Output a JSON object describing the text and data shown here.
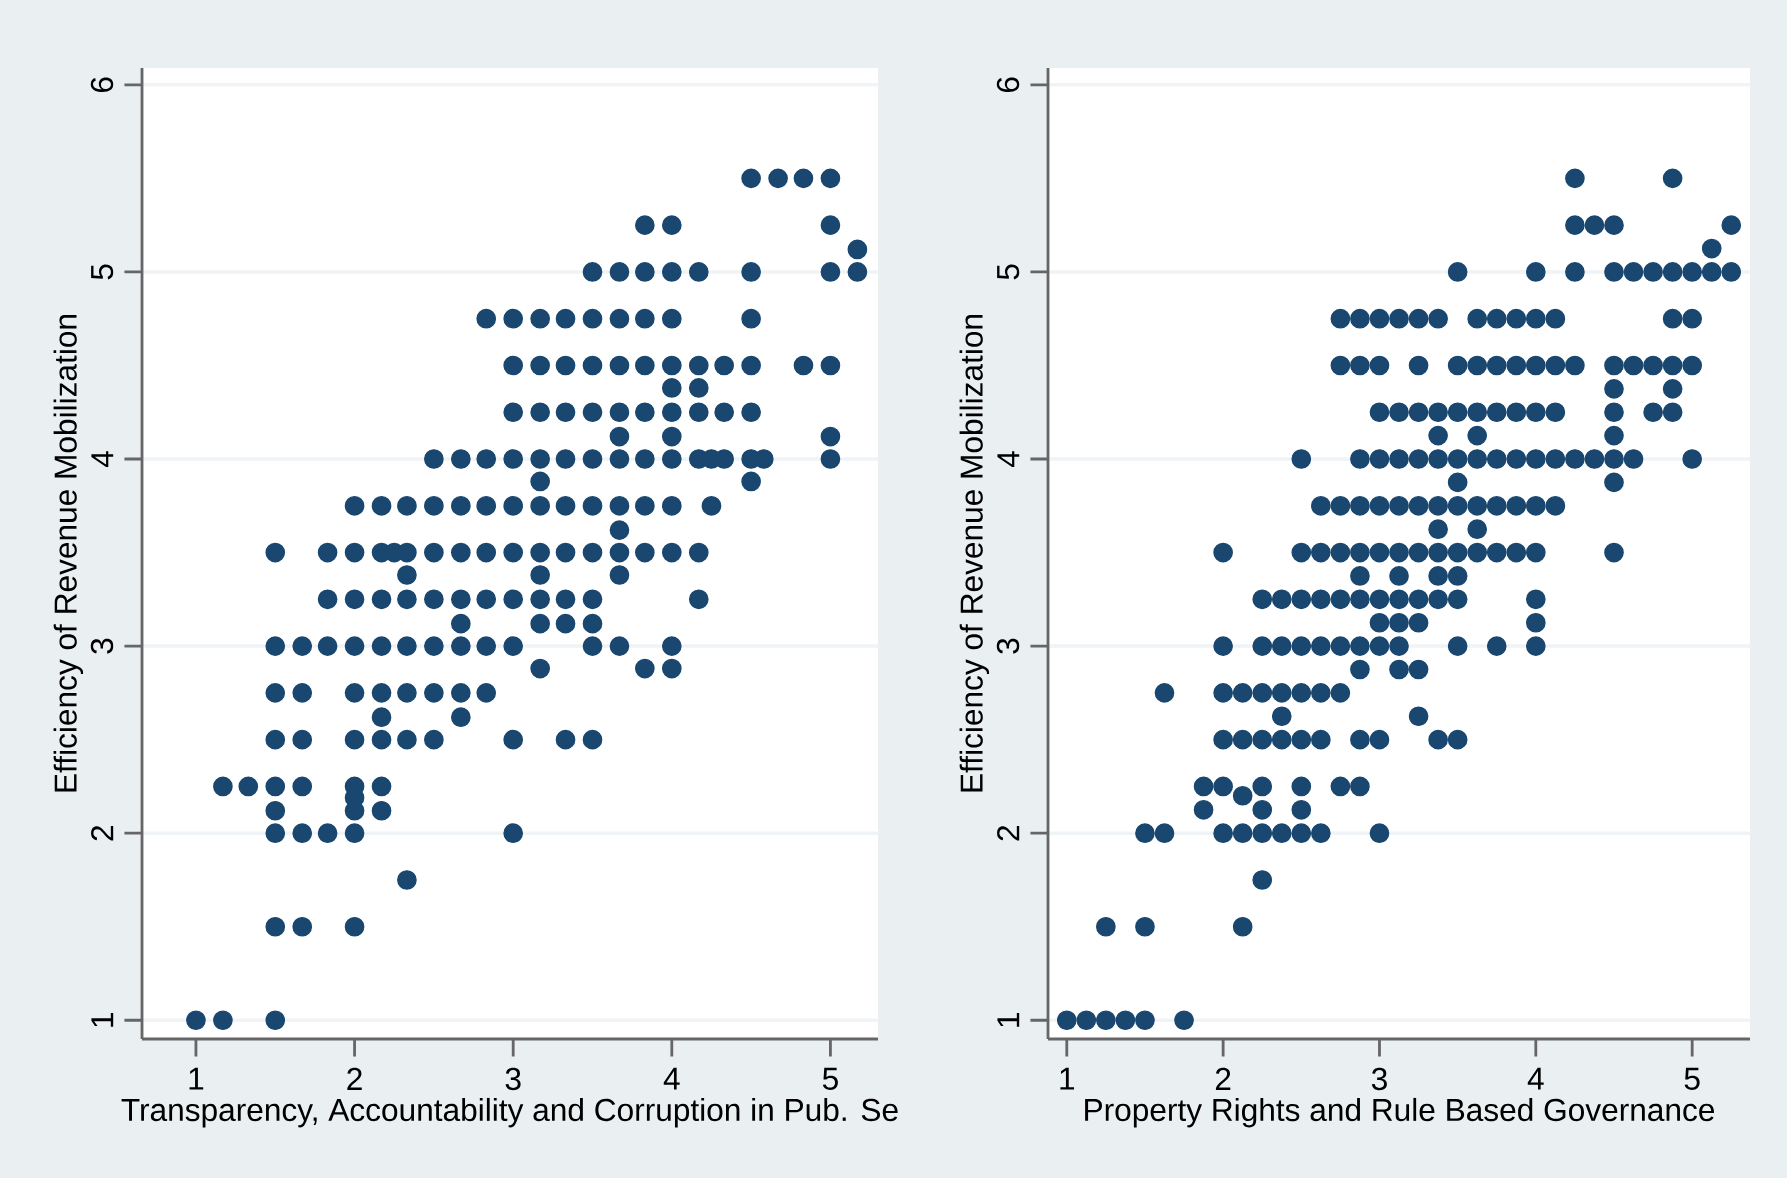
{
  "chart_data": [
    {
      "type": "scatter",
      "xlabel": "Transparency, Accountability and Corruption in Pub. Se",
      "ylabel": "Efficiency of Revenue Mobilization",
      "xlim": [
        0.66,
        5.3
      ],
      "ylim": [
        0.9,
        6.09
      ],
      "xticks": [
        1,
        2,
        3,
        4,
        5
      ],
      "yticks": [
        1,
        2,
        3,
        4,
        5,
        6
      ],
      "grid": "y",
      "x": [
        4.5,
        4.67,
        4.83,
        5,
        3.83,
        4,
        5,
        5.17,
        3.5,
        3.67,
        3.83,
        4,
        4.17,
        4.5,
        5,
        5.17,
        2.83,
        3,
        3.17,
        3.33,
        3.5,
        3.67,
        3.83,
        4,
        4.5,
        3,
        3.17,
        3.33,
        3.5,
        3.67,
        3.83,
        4,
        4.17,
        4.33,
        4.5,
        4.83,
        5,
        4,
        4.17,
        3,
        3.17,
        3.33,
        3.5,
        3.67,
        3.83,
        4,
        4.17,
        4.33,
        4.5,
        3.67,
        4,
        5,
        2.5,
        2.67,
        2.83,
        3,
        3.17,
        3.33,
        3.5,
        3.67,
        3.83,
        4,
        4.17,
        4.25,
        4.33,
        4.5,
        4.58,
        5,
        3.17,
        4.5,
        2,
        2.17,
        2.33,
        2.5,
        2.67,
        2.83,
        3,
        3.17,
        3.33,
        3.5,
        3.67,
        3.83,
        4,
        4.25,
        3.67,
        1.5,
        1.83,
        2,
        2.17,
        2.25,
        2.33,
        2.5,
        2.67,
        2.83,
        3,
        3.17,
        3.33,
        3.5,
        3.67,
        3.83,
        4,
        4.17,
        2.33,
        3.17,
        3.67,
        1.83,
        2,
        2.17,
        2.33,
        2.5,
        2.67,
        2.83,
        3,
        3.17,
        3.33,
        3.5,
        4.17,
        2.67,
        3.17,
        3.33,
        3.5,
        1.5,
        1.67,
        1.83,
        2,
        2.17,
        2.33,
        2.5,
        2.67,
        2.83,
        3,
        3.5,
        3.67,
        4,
        3.17,
        3.83,
        4,
        1.5,
        1.67,
        2,
        2.17,
        2.33,
        2.5,
        2.67,
        2.83,
        2.17,
        2.67,
        1.5,
        1.67,
        2,
        2.17,
        2.33,
        2.5,
        3,
        3.33,
        3.5,
        1.17,
        1.33,
        1.5,
        1.67,
        2,
        2.17,
        2,
        1.5,
        2,
        2.17,
        1.5,
        1.67,
        1.83,
        2,
        3,
        2.33,
        1.5,
        1.67,
        2,
        1,
        1.17,
        1.5
      ],
      "series": [
        {
          "color": "#1a476f",
          "values": [
            5.5,
            5.5,
            5.5,
            5.5,
            5.25,
            5.25,
            5.25,
            5.12,
            5,
            5,
            5,
            5,
            5,
            5,
            5,
            5,
            4.75,
            4.75,
            4.75,
            4.75,
            4.75,
            4.75,
            4.75,
            4.75,
            4.75,
            4.5,
            4.5,
            4.5,
            4.5,
            4.5,
            4.5,
            4.5,
            4.5,
            4.5,
            4.5,
            4.5,
            4.5,
            4.38,
            4.38,
            4.25,
            4.25,
            4.25,
            4.25,
            4.25,
            4.25,
            4.25,
            4.25,
            4.25,
            4.25,
            4.12,
            4.12,
            4.12,
            4,
            4,
            4,
            4,
            4,
            4,
            4,
            4,
            4,
            4,
            4,
            4,
            4,
            4,
            4,
            4,
            3.88,
            3.88,
            3.75,
            3.75,
            3.75,
            3.75,
            3.75,
            3.75,
            3.75,
            3.75,
            3.75,
            3.75,
            3.75,
            3.75,
            3.75,
            3.75,
            3.62,
            3.5,
            3.5,
            3.5,
            3.5,
            3.5,
            3.5,
            3.5,
            3.5,
            3.5,
            3.5,
            3.5,
            3.5,
            3.5,
            3.5,
            3.5,
            3.5,
            3.5,
            3.38,
            3.38,
            3.38,
            3.25,
            3.25,
            3.25,
            3.25,
            3.25,
            3.25,
            3.25,
            3.25,
            3.25,
            3.25,
            3.25,
            3.25,
            3.12,
            3.12,
            3.12,
            3.12,
            3,
            3,
            3,
            3,
            3,
            3,
            3,
            3,
            3,
            3,
            3,
            3,
            3,
            2.88,
            2.88,
            2.88,
            2.75,
            2.75,
            2.75,
            2.75,
            2.75,
            2.75,
            2.75,
            2.75,
            2.62,
            2.62,
            2.5,
            2.5,
            2.5,
            2.5,
            2.5,
            2.5,
            2.5,
            2.5,
            2.5,
            2.25,
            2.25,
            2.25,
            2.25,
            2.25,
            2.25,
            2.19,
            2.12,
            2.12,
            2.12,
            2,
            2,
            2,
            2,
            2,
            1.75,
            1.5,
            1.5,
            1.5,
            1,
            1,
            1
          ]
        }
      ]
    },
    {
      "type": "scatter",
      "xlabel": "Property Rights and Rule Based Governance",
      "ylabel": "Efficiency of Revenue Mobilization",
      "xlim": [
        0.88,
        5.37
      ],
      "ylim": [
        0.9,
        6.09
      ],
      "xticks": [
        1,
        2,
        3,
        4,
        5
      ],
      "yticks": [
        1,
        2,
        3,
        4,
        5,
        6
      ],
      "grid": "y",
      "x": [
        4.25,
        4.875,
        4.25,
        4.375,
        4.5,
        5.25,
        5.125,
        3.5,
        4,
        4.25,
        4.5,
        4.625,
        4.75,
        4.875,
        5,
        5.125,
        5.25,
        2.75,
        2.875,
        3,
        3.125,
        3.25,
        3.375,
        3.625,
        3.75,
        3.875,
        4,
        4.125,
        4.875,
        5,
        2.75,
        2.875,
        3,
        3.25,
        3.5,
        3.625,
        3.75,
        3.875,
        4,
        4.125,
        4.25,
        4.5,
        4.625,
        4.75,
        4.875,
        5,
        4.5,
        4.875,
        3,
        3.125,
        3.25,
        3.375,
        3.5,
        3.625,
        3.75,
        3.875,
        4,
        4.125,
        4.5,
        4.75,
        4.875,
        3.375,
        3.625,
        4.5,
        2.5,
        2.875,
        3,
        3.125,
        3.25,
        3.375,
        3.5,
        3.625,
        3.75,
        3.875,
        4,
        4.125,
        4.25,
        4.375,
        4.5,
        4.625,
        5,
        3.5,
        4.5,
        2.625,
        2.75,
        2.875,
        3,
        3.125,
        3.25,
        3.375,
        3.5,
        3.625,
        3.75,
        3.875,
        4,
        4.125,
        3.375,
        3.625,
        2,
        2.5,
        2.625,
        2.75,
        2.875,
        3,
        3.125,
        3.25,
        3.375,
        3.5,
        3.625,
        3.75,
        3.875,
        4,
        4.5,
        2.875,
        3.125,
        3.375,
        3.5,
        2.25,
        2.375,
        2.5,
        2.625,
        2.75,
        2.875,
        3,
        3.125,
        3.25,
        3.375,
        3.5,
        4,
        3,
        3.125,
        3.25,
        4,
        2,
        2.25,
        2.375,
        2.5,
        2.625,
        2.75,
        2.875,
        3,
        3.125,
        3.5,
        3.75,
        4,
        2.875,
        3.125,
        3.25,
        1.625,
        2,
        2.125,
        2.25,
        2.375,
        2.5,
        2.625,
        2.75,
        2.375,
        3.25,
        2,
        2.125,
        2.25,
        2.375,
        2.5,
        2.625,
        2.875,
        3,
        3.375,
        3.5,
        1.875,
        2,
        2.25,
        2.5,
        2.75,
        2.875,
        2.125,
        1.875,
        2.25,
        2.5,
        1.5,
        1.625,
        2,
        2.125,
        2.25,
        2.375,
        2.5,
        2.625,
        3,
        2.25,
        1.25,
        1.5,
        2.125,
        1,
        1.125,
        1.25,
        1.375,
        1.5,
        1.75
      ],
      "series": [
        {
          "color": "#1a476f",
          "values": [
            5.5,
            5.5,
            5.25,
            5.25,
            5.25,
            5.25,
            5.125,
            5,
            5,
            5,
            5,
            5,
            5,
            5,
            5,
            5,
            5,
            4.75,
            4.75,
            4.75,
            4.75,
            4.75,
            4.75,
            4.75,
            4.75,
            4.75,
            4.75,
            4.75,
            4.75,
            4.75,
            4.5,
            4.5,
            4.5,
            4.5,
            4.5,
            4.5,
            4.5,
            4.5,
            4.5,
            4.5,
            4.5,
            4.5,
            4.5,
            4.5,
            4.5,
            4.5,
            4.375,
            4.375,
            4.25,
            4.25,
            4.25,
            4.25,
            4.25,
            4.25,
            4.25,
            4.25,
            4.25,
            4.25,
            4.25,
            4.25,
            4.25,
            4.125,
            4.125,
            4.125,
            4,
            4,
            4,
            4,
            4,
            4,
            4,
            4,
            4,
            4,
            4,
            4,
            4,
            4,
            4,
            4,
            4,
            3.875,
            3.875,
            3.75,
            3.75,
            3.75,
            3.75,
            3.75,
            3.75,
            3.75,
            3.75,
            3.75,
            3.75,
            3.75,
            3.75,
            3.75,
            3.625,
            3.625,
            3.5,
            3.5,
            3.5,
            3.5,
            3.5,
            3.5,
            3.5,
            3.5,
            3.5,
            3.5,
            3.5,
            3.5,
            3.5,
            3.5,
            3.5,
            3.375,
            3.375,
            3.375,
            3.375,
            3.25,
            3.25,
            3.25,
            3.25,
            3.25,
            3.25,
            3.25,
            3.25,
            3.25,
            3.25,
            3.25,
            3.25,
            3.125,
            3.125,
            3.125,
            3.125,
            3,
            3,
            3,
            3,
            3,
            3,
            3,
            3,
            3,
            3,
            3,
            3,
            2.875,
            2.875,
            2.875,
            2.75,
            2.75,
            2.75,
            2.75,
            2.75,
            2.75,
            2.75,
            2.75,
            2.625,
            2.625,
            2.5,
            2.5,
            2.5,
            2.5,
            2.5,
            2.5,
            2.5,
            2.5,
            2.5,
            2.5,
            2.25,
            2.25,
            2.25,
            2.25,
            2.25,
            2.25,
            2.2,
            2.125,
            2.125,
            2.125,
            2,
            2,
            2,
            2,
            2,
            2,
            2,
            2,
            2,
            1.75,
            1.5,
            1.5,
            1.5,
            1,
            1,
            1,
            1,
            1,
            1
          ]
        }
      ]
    }
  ]
}
